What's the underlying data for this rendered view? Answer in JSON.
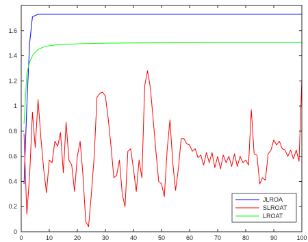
{
  "chart_data": {
    "type": "line",
    "title": "",
    "xlabel": "",
    "ylabel": "",
    "xlim": [
      0,
      100
    ],
    "ylim": [
      0,
      1.8
    ],
    "xticks": [
      0,
      10,
      20,
      30,
      40,
      50,
      60,
      70,
      80,
      90,
      100
    ],
    "xtick_labels": [
      "0",
      "10",
      "20",
      "30",
      "40",
      "50",
      "60",
      "70",
      "80",
      "90",
      "100"
    ],
    "yticks": [
      0,
      0.2,
      0.4,
      0.6,
      0.8,
      1,
      1.2,
      1.4,
      1.6
    ],
    "ytick_labels": [
      "0",
      "0.2",
      "0.4",
      "0.6",
      "0.8",
      "1",
      "1.2",
      "1.4",
      "1.6"
    ],
    "grid": false,
    "legend_position": "bottom-right",
    "series": [
      {
        "name": "JLROA",
        "color": "#0000ff",
        "x": [
          1,
          2,
          3,
          4,
          5,
          6,
          7,
          8,
          10,
          15,
          20,
          30,
          40,
          50,
          60,
          70,
          80,
          90,
          100
        ],
        "y": [
          0.38,
          1.0,
          1.5,
          1.71,
          1.72,
          1.73,
          1.73,
          1.73,
          1.73,
          1.73,
          1.73,
          1.73,
          1.73,
          1.73,
          1.73,
          1.73,
          1.73,
          1.73,
          1.73
        ]
      },
      {
        "name": "SLROAT",
        "color": "#ff0000",
        "x": [
          1,
          2,
          3,
          4,
          5,
          6,
          7,
          8,
          9,
          10,
          11,
          12,
          13,
          14,
          15,
          16,
          17,
          18,
          19,
          20,
          21,
          22,
          23,
          24,
          25,
          26,
          27,
          28,
          29,
          30,
          31,
          32,
          33,
          34,
          35,
          36,
          37,
          38,
          39,
          40,
          41,
          42,
          43,
          44,
          45,
          46,
          47,
          48,
          49,
          50,
          51,
          52,
          53,
          54,
          55,
          56,
          57,
          58,
          59,
          60,
          61,
          62,
          63,
          64,
          65,
          66,
          67,
          68,
          69,
          70,
          71,
          72,
          73,
          74,
          75,
          76,
          77,
          78,
          79,
          80,
          81,
          82,
          83,
          84,
          85,
          86,
          87,
          88,
          89,
          90,
          91,
          92,
          93,
          94,
          95,
          96,
          97,
          98,
          99,
          100
        ],
        "y": [
          0.78,
          0.14,
          0.45,
          0.95,
          0.67,
          1.05,
          0.75,
          0.5,
          0.31,
          0.57,
          0.55,
          0.72,
          0.68,
          0.79,
          0.47,
          0.87,
          0.57,
          0.53,
          0.32,
          0.6,
          0.72,
          0.45,
          0.08,
          0.04,
          0.3,
          0.6,
          1.07,
          1.1,
          1.11,
          1.08,
          0.9,
          0.68,
          0.43,
          0.45,
          0.57,
          0.3,
          0.2,
          0.64,
          0.66,
          0.5,
          0.32,
          0.57,
          0.43,
          1.16,
          1.28,
          1.15,
          0.9,
          0.64,
          0.4,
          0.38,
          0.28,
          0.65,
          0.89,
          0.55,
          0.33,
          0.5,
          0.74,
          0.74,
          0.7,
          0.69,
          0.64,
          0.66,
          0.59,
          0.61,
          0.53,
          0.63,
          0.55,
          0.63,
          0.51,
          0.6,
          0.5,
          0.61,
          0.55,
          0.6,
          0.52,
          0.62,
          0.52,
          0.6,
          0.55,
          0.57,
          0.53,
          0.97,
          0.62,
          0.61,
          0.38,
          0.43,
          0.41,
          0.62,
          0.65,
          0.73,
          0.69,
          0.72,
          0.66,
          0.65,
          0.6,
          0.65,
          0.58,
          0.65,
          0.56,
          1.22
        ]
      },
      {
        "name": "LROAT",
        "color": "#00ff00",
        "x": [
          1,
          2,
          3,
          4,
          5,
          6,
          7,
          8,
          10,
          12,
          15,
          20,
          30,
          40,
          50,
          60,
          70,
          80,
          90,
          100
        ],
        "y": [
          0.86,
          1.26,
          1.35,
          1.4,
          1.43,
          1.45,
          1.46,
          1.47,
          1.48,
          1.485,
          1.49,
          1.495,
          1.5,
          1.502,
          1.503,
          1.504,
          1.505,
          1.505,
          1.505,
          1.505
        ]
      }
    ]
  }
}
